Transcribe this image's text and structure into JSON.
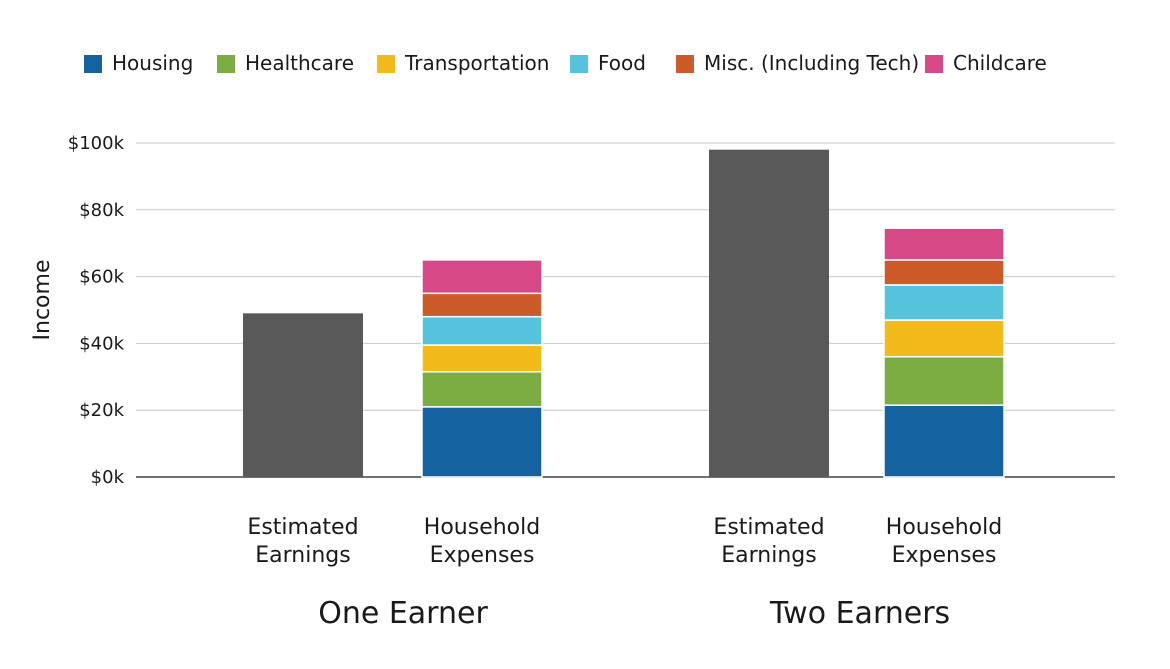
{
  "chart_data": {
    "type": "bar",
    "stacked": true,
    "ylabel": "Income",
    "ylim": [
      0,
      100
    ],
    "yticks": [
      0,
      20,
      40,
      60,
      80,
      100
    ],
    "ytick_labels": [
      "$0k",
      "$20k",
      "$40k",
      "$60k",
      "$80k",
      "$100k"
    ],
    "legend_position": "top",
    "gridlines": true,
    "legend": [
      {
        "name": "Housing",
        "color": "#1562a1"
      },
      {
        "name": "Healthcare",
        "color": "#7cad43"
      },
      {
        "name": "Transportation",
        "color": "#f2bb1a"
      },
      {
        "name": "Food",
        "color": "#55c3dc"
      },
      {
        "name": "Misc. (Including Tech)",
        "color": "#cd5b29"
      },
      {
        "name": "Childcare",
        "color": "#d64886"
      }
    ],
    "earnings_color": "#595959",
    "groups": [
      {
        "label": "One Earner",
        "bars": [
          {
            "label": [
              "Estimated",
              "Earnings"
            ],
            "value": 49
          },
          {
            "label": [
              "Household",
              "Expenses"
            ],
            "segments": [
              21,
              10.5,
              8,
              8.5,
              7,
              10
            ]
          }
        ]
      },
      {
        "label": "Two Earners",
        "bars": [
          {
            "label": [
              "Estimated",
              "Earnings"
            ],
            "value": 98
          },
          {
            "label": [
              "Household",
              "Expenses"
            ],
            "segments": [
              21.5,
              14.5,
              11,
              10.5,
              7.5,
              9.5
            ]
          }
        ]
      }
    ]
  }
}
